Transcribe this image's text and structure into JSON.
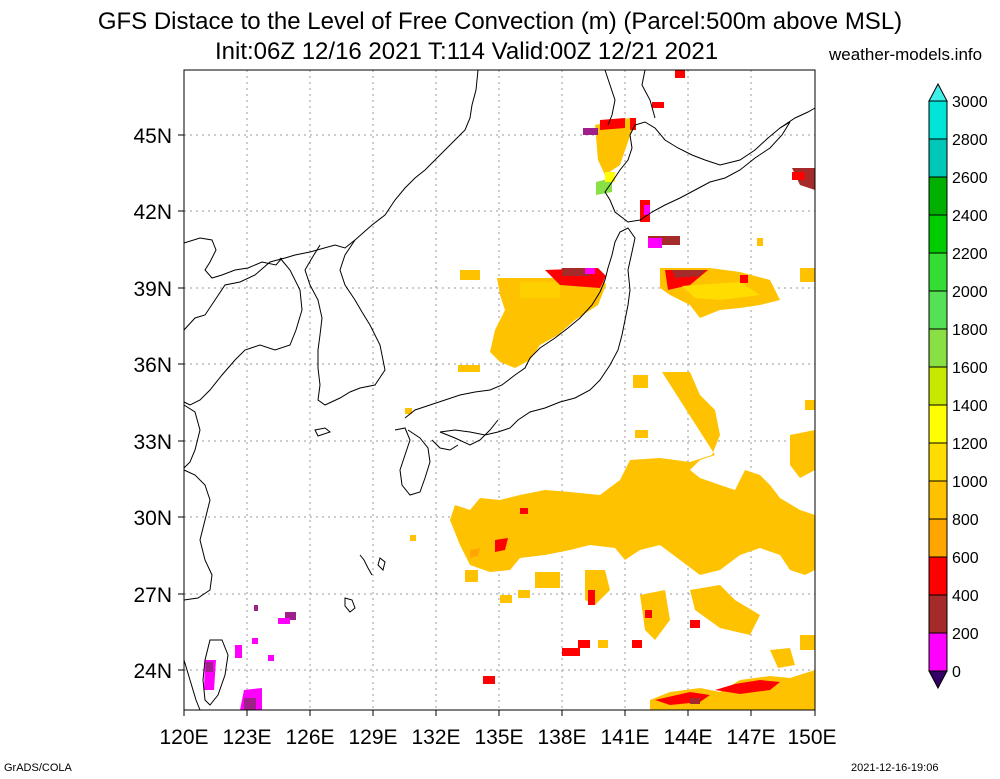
{
  "header": {
    "title_line1": "GFS Distace to the Level of Free Convection (m) (Parcel:500m above MSL)",
    "title_line2": "Init:06Z 12/16 2021 T:114 Valid:00Z 12/21 2021",
    "site": "weather-models.info"
  },
  "map": {
    "lat_labels": [
      "45N",
      "42N",
      "39N",
      "36N",
      "33N",
      "30N",
      "27N",
      "24N"
    ],
    "lon_labels": [
      "120E",
      "123E",
      "126E",
      "129E",
      "132E",
      "135E",
      "138E",
      "141E",
      "144E",
      "147E",
      "150E"
    ],
    "colorbar": {
      "levels": [
        "3000",
        "2800",
        "2600",
        "2400",
        "2200",
        "2000",
        "1800",
        "1600",
        "1400",
        "1200",
        "1000",
        "800",
        "600",
        "400",
        "200",
        "0"
      ],
      "colors": [
        "#00e5d8",
        "#00c8b8",
        "#00b000",
        "#00cc00",
        "#33dd33",
        "#55e055",
        "#88e044",
        "#c8e800",
        "#ffff00",
        "#ffdd00",
        "#ffc200",
        "#ffa600",
        "#ff0000",
        "#a52a2a",
        "#ff00ff",
        "#550088"
      ],
      "top_triangle_color": "#40f0e8",
      "bottom_triangle_color": "#330066"
    }
  },
  "footer": {
    "left": "GrADS/COLA",
    "right": "2021-12-16-19:06"
  }
}
